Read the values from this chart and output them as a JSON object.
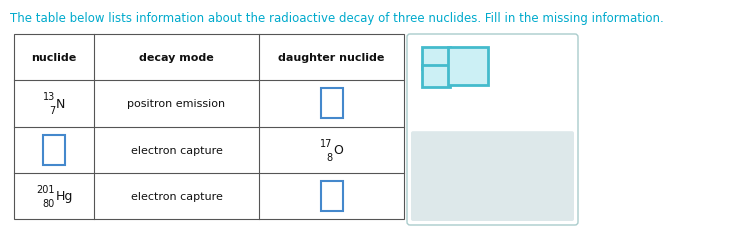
{
  "title": "The table below lists information about the radioactive decay of three nuclides. Fill in the missing information.",
  "title_color": "#00AACC",
  "title_fontsize": 8.5,
  "bg_color": "#ffffff",
  "col_headers": [
    "nuclide",
    "decay mode",
    "daughter nuclide"
  ],
  "rows": [
    {
      "nuclide_text": "13\n7",
      "nuclide_symbol": "N",
      "nuclide_is_box": false,
      "decay_mode": "positron emission",
      "daughter_is_box": true,
      "daughter_text": "",
      "daughter_symbol": ""
    },
    {
      "nuclide_text": "",
      "nuclide_symbol": "",
      "nuclide_is_box": true,
      "decay_mode": "electron capture",
      "daughter_is_box": false,
      "daughter_text": "17\n8",
      "daughter_symbol": "O"
    },
    {
      "nuclide_text": "201\n80",
      "nuclide_symbol": "Hg",
      "nuclide_is_box": false,
      "decay_mode": "electron capture",
      "daughter_is_box": true,
      "daughter_text": "",
      "daughter_symbol": ""
    }
  ],
  "empty_box_color": "#ffffff",
  "empty_box_border": "#4488cc",
  "cell_fontsize": 8,
  "header_fontsize": 8,
  "table_line_color": "#555555",
  "widget_panel_border": "#aacccc",
  "widget_teal": "#44BBCC",
  "widget_teal_fill": "#CCF0F5",
  "widget_gray_fill": "#dde8ea",
  "widget_icon_color": "#889999"
}
